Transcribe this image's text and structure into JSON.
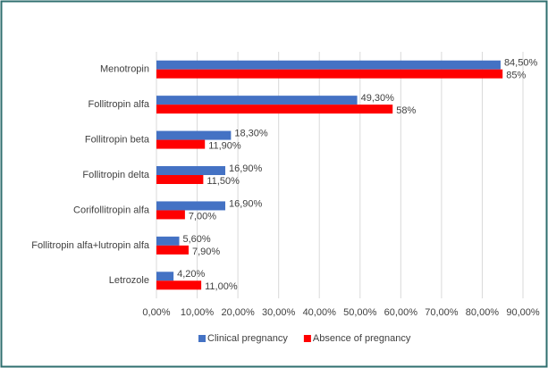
{
  "chart_data": {
    "type": "hbar",
    "categories": [
      "Menotropin",
      "Follitropin alfa",
      "Follitropin beta",
      "Follitropin delta",
      "Corifollitropin alfa",
      "Follitropin alfa+lutropin alfa",
      "Letrozole"
    ],
    "series": [
      {
        "name": "Clinical pregnancy",
        "color": "#4472c4",
        "values": [
          84.5,
          49.3,
          18.3,
          16.9,
          16.9,
          5.6,
          4.2
        ],
        "value_labels": [
          "84,50%",
          "49,30%",
          "18,30%",
          "16,90%",
          "16,90%",
          "5,60%",
          "4,20%"
        ]
      },
      {
        "name": "Absence of pregnancy",
        "color": "#ff0000",
        "values": [
          85,
          58,
          11.9,
          11.5,
          7.0,
          7.9,
          11.0
        ],
        "value_labels": [
          "85%",
          "58%",
          "11,90%",
          "11,50%",
          "7,00%",
          "7,90%",
          "11,00%"
        ]
      }
    ],
    "xlim": [
      0,
      90
    ],
    "xticks": [
      {
        "value": 0,
        "label": "0,00%"
      },
      {
        "value": 10,
        "label": "10,00%"
      },
      {
        "value": 20,
        "label": "20,00%"
      },
      {
        "value": 30,
        "label": "30,00%"
      },
      {
        "value": 40,
        "label": "40,00%"
      },
      {
        "value": 50,
        "label": "50,00%"
      },
      {
        "value": 60,
        "label": "60,00%"
      },
      {
        "value": 70,
        "label": "70,00%"
      },
      {
        "value": 80,
        "label": "80,00%"
      },
      {
        "value": 90,
        "label": "90,00%"
      }
    ],
    "grid": true,
    "legend": "bottom"
  }
}
